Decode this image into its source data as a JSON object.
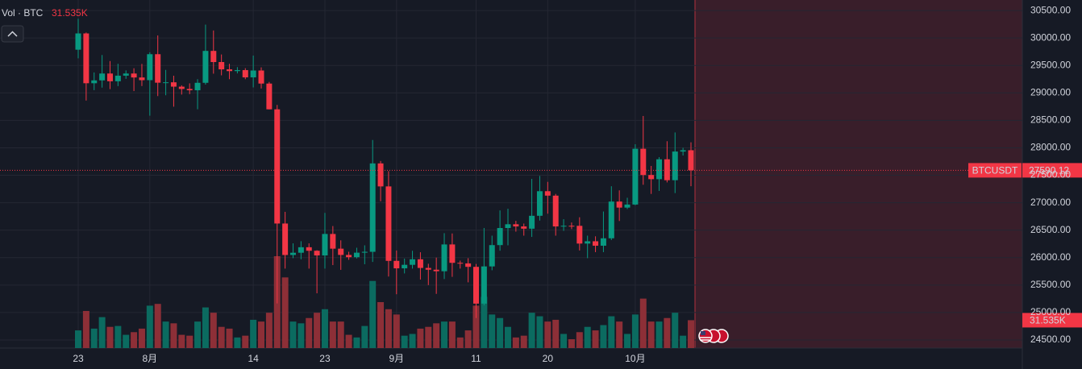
{
  "chart_data": {
    "type": "candlestick",
    "symbol": "BTCUSDT",
    "volume_label": "Vol · BTC",
    "categories": [
      "23",
      null,
      null,
      null,
      null,
      null,
      null,
      null,
      null,
      "8月",
      null,
      null,
      null,
      null,
      null,
      null,
      null,
      null,
      null,
      null,
      null,
      null,
      "14",
      null,
      null,
      null,
      null,
      null,
      null,
      null,
      null,
      "23",
      null,
      null,
      null,
      null,
      null,
      null,
      null,
      null,
      "9月",
      null,
      null,
      null,
      null,
      null,
      null,
      null,
      null,
      null,
      "11",
      null,
      null,
      null,
      null,
      null,
      null,
      null,
      null,
      "20",
      null,
      null,
      null,
      null,
      null,
      null,
      null,
      null,
      null,
      null,
      "10月",
      null,
      null,
      null,
      null,
      null,
      null,
      null
    ],
    "open": [
      29787,
      30083,
      29176,
      29228,
      29353,
      29212,
      29314,
      29353,
      29281,
      29232,
      29705,
      29186,
      29193,
      29114,
      29072,
      29048,
      29184,
      29765,
      29562,
      29429,
      29397,
      29415,
      29283,
      29408,
      29170,
      28701,
      26621,
      26048,
      26089,
      26189,
      26125,
      26040,
      26431,
      26163,
      26049,
      26008,
      26090,
      26106,
      27716,
      27297,
      25941,
      25805,
      25869,
      25970,
      25812,
      25780,
      25752,
      26240,
      25905,
      25895,
      25832,
      25162,
      25840,
      26228,
      26539,
      26608,
      26568,
      26527,
      26762,
      27210,
      27129,
      26568,
      26580,
      26579,
      26256,
      26298,
      26217,
      26352,
      27021,
      26911,
      26967,
      27983,
      27505,
      27429,
      27791,
      27410,
      27932,
      27956
    ],
    "high": [
      30350,
      30100,
      29373,
      29690,
      29580,
      29530,
      29410,
      29449,
      29528,
      29739,
      30047,
      29419,
      29313,
      29138,
      29174,
      29250,
      30244,
      30137,
      29700,
      29530,
      29470,
      29450,
      29680,
      29465,
      29200,
      28780,
      26834,
      26260,
      26299,
      26260,
      26135,
      26815,
      26575,
      26315,
      26107,
      26180,
      26224,
      28142,
      27760,
      27575,
      26130,
      25983,
      26125,
      26098,
      25888,
      26000,
      26445,
      26440,
      25945,
      25990,
      25885,
      26540,
      26400,
      26860,
      26890,
      26670,
      26620,
      27434,
      27488,
      27380,
      27160,
      26700,
      26640,
      26735,
      26400,
      26388,
      26840,
      27300,
      27225,
      27090,
      28065,
      28580,
      27670,
      27830,
      28120,
      28280,
      28000,
      28100
    ],
    "low": [
      29630,
      28861,
      29050,
      29096,
      29069,
      29124,
      29256,
      29033,
      29125,
      28585,
      28942,
      28957,
      28749,
      28970,
      28978,
      28702,
      29151,
      29350,
      29320,
      29250,
      29355,
      29250,
      29100,
      29080,
      28700,
      25166,
      25800,
      25990,
      25970,
      25800,
      25350,
      25800,
      25864,
      25777,
      25960,
      25985,
      25880,
      25922,
      27026,
      25655,
      25333,
      25712,
      25800,
      25600,
      25500,
      25340,
      25610,
      25650,
      25800,
      25550,
      24900,
      25131,
      25770,
      26126,
      26224,
      26473,
      26400,
      26377,
      26675,
      26800,
      26400,
      26487,
      26520,
      26130,
      25990,
      26100,
      26100,
      26320,
      26667,
      26884,
      26954,
      27327,
      27160,
      27215,
      27370,
      27175,
      27860,
      27300
    ],
    "close": [
      30083,
      29176,
      29228,
      29353,
      29212,
      29314,
      29353,
      29281,
      29232,
      29705,
      29186,
      29193,
      29114,
      29072,
      29048,
      29184,
      29765,
      29562,
      29429,
      29397,
      29415,
      29283,
      29408,
      29170,
      28701,
      26621,
      26048,
      26089,
      26189,
      26125,
      26040,
      26431,
      26163,
      26049,
      26008,
      26090,
      26106,
      27716,
      27297,
      25941,
      25805,
      25869,
      25970,
      25812,
      25780,
      25752,
      26240,
      25905,
      25895,
      25832,
      25162,
      25840,
      26228,
      26539,
      26608,
      26568,
      26527,
      26762,
      27210,
      27129,
      26568,
      26580,
      26579,
      26256,
      26298,
      26217,
      26352,
      27021,
      26911,
      26967,
      27983,
      27505,
      27429,
      27791,
      27410,
      27932,
      27956,
      27590.12
    ],
    "volume": [
      20,
      42,
      22,
      35,
      24,
      25,
      15,
      18,
      22,
      48,
      50,
      30,
      28,
      15,
      14,
      30,
      46,
      40,
      24,
      22,
      12,
      14,
      32,
      30,
      40,
      104,
      80,
      30,
      28,
      34,
      40,
      44,
      30,
      30,
      15,
      12,
      25,
      76,
      52,
      44,
      38,
      14,
      16,
      22,
      24,
      28,
      30,
      30,
      12,
      20,
      48,
      58,
      38,
      34,
      24,
      12,
      14,
      40,
      36,
      30,
      32,
      16,
      10,
      18,
      24,
      20,
      26,
      36,
      30,
      16,
      38,
      56,
      30,
      30,
      34,
      40,
      14,
      31.535
    ],
    "volume_value_labels": [
      null,
      null,
      null,
      null,
      null,
      null,
      null,
      null,
      null,
      null,
      null,
      null,
      null,
      null,
      null,
      null,
      null,
      null,
      null,
      null,
      null,
      null,
      null,
      null,
      null,
      null,
      null,
      null,
      null,
      null,
      null,
      null,
      null,
      null,
      null,
      null,
      null,
      null,
      null,
      null,
      null,
      null,
      null,
      null,
      null,
      null,
      null,
      null,
      null,
      null,
      null,
      null,
      null,
      null,
      null,
      null,
      null,
      null,
      null,
      null,
      null,
      null,
      null,
      null,
      null,
      null,
      null,
      null,
      null,
      null,
      null,
      null,
      null,
      null,
      null,
      null,
      null,
      "31.535K"
    ],
    "up_color": "#089981",
    "down_color": "#f23645",
    "up_volume_color": "#0b6b60",
    "down_volume_color": "#8d2f37",
    "ylim": [
      24353,
      30692
    ],
    "yticks": [
      {
        "value": 24500,
        "label": "24500.00"
      },
      {
        "value": 25000,
        "label": "25000.00"
      },
      {
        "value": 25500,
        "label": "25500.00"
      },
      {
        "value": 26000,
        "label": "26000.00"
      },
      {
        "value": 26500,
        "label": "26500.00"
      },
      {
        "value": 27000,
        "label": "27000.00"
      },
      {
        "value": 27500,
        "label": "27500.00"
      },
      {
        "value": 28000,
        "label": "28000.00"
      },
      {
        "value": 28500,
        "label": "28500.00"
      },
      {
        "value": 29000,
        "label": "29000.00"
      },
      {
        "value": 29500,
        "label": "29500.00"
      },
      {
        "value": 30000,
        "label": "30000.00"
      },
      {
        "value": 30500,
        "label": "30500.00"
      }
    ],
    "grid": true
  }
}
